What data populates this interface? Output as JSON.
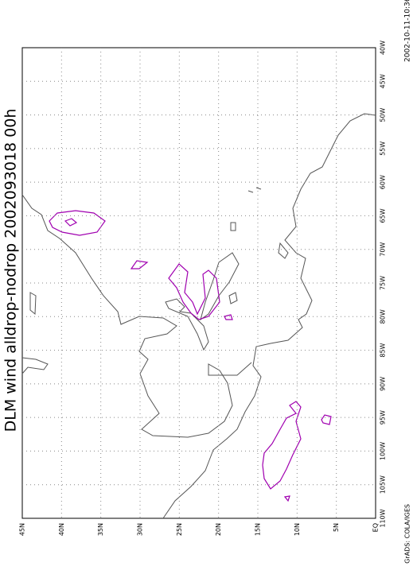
{
  "title": "DLM wind alldrop-nodrop 2002093018 00h",
  "timestamp": "2002-10-11-10:36",
  "credit": "GrADS: COLA/IGES",
  "lon_labels": [
    "40W",
    "45W",
    "50W",
    "55W",
    "60W",
    "65W",
    "70W",
    "75W",
    "80W",
    "85W",
    "90W",
    "95W",
    "100W",
    "105W",
    "110W"
  ],
  "lat_labels": [
    "45N",
    "40N",
    "35N",
    "30N",
    "25N",
    "20N",
    "15N",
    "10N",
    "5N",
    "EQ"
  ]
}
